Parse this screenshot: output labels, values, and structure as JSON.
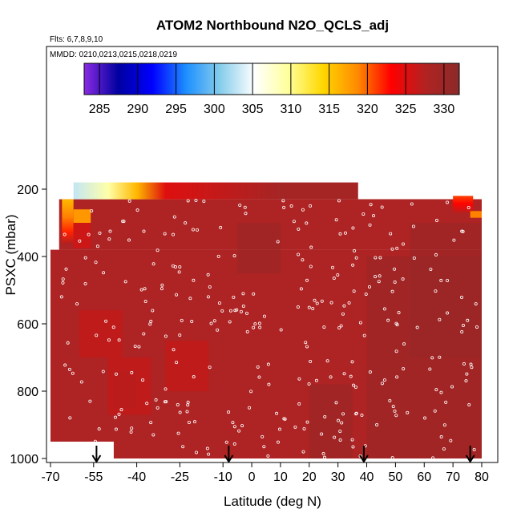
{
  "chart_data": {
    "type": "heatmap",
    "title": "ATOM2 Northbound N2O_QCLS_adj",
    "annotations": {
      "flights": "Flts: 6,7,8,9,10",
      "dates": "MMDD: 0210,0213,0215,0218,0219"
    },
    "xlabel": "Latitude (deg N)",
    "ylabel": "PSXC (mbar)",
    "x_ticks": [
      -70,
      -55,
      -40,
      -25,
      -10,
      0,
      10,
      20,
      30,
      40,
      50,
      60,
      70,
      80
    ],
    "x_tick_labels": [
      "-70",
      "-55",
      "-40",
      "-25",
      "-10",
      "0",
      "10",
      "20",
      "30",
      "40",
      "50",
      "60",
      "70",
      "80"
    ],
    "y_ticks": [
      200,
      400,
      600,
      800,
      1000
    ],
    "y_tick_labels": [
      "200",
      "400",
      "600",
      "800",
      "1000"
    ],
    "ylim": [
      1000,
      75
    ],
    "colorbar": {
      "ticks": [
        285,
        290,
        295,
        300,
        305,
        310,
        315,
        320,
        325,
        330
      ],
      "range": [
        283,
        332
      ],
      "colors": [
        "#8a2be2",
        "#0000a0",
        "#0000ff",
        "#1e90ff",
        "#87ceeb",
        "#ffffff",
        "#ffff99",
        "#ffd700",
        "#ff8c00",
        "#ff0000",
        "#b22222",
        "#8b2a2a"
      ]
    },
    "field_summary": {
      "lower_troposphere_value": 328,
      "upper_band_pressure": [
        180,
        230
      ],
      "upper_band_values": [
        {
          "lat": -62,
          "value": 303
        },
        {
          "lat": -50,
          "value": 309
        },
        {
          "lat": -40,
          "value": 316
        },
        {
          "lat": -30,
          "value": 325
        },
        {
          "lat": 10,
          "value": 329
        },
        {
          "lat": 37,
          "value": 329
        }
      ],
      "right_band_values": [
        {
          "lat": 50,
          "value": 326
        },
        {
          "lat": 65,
          "value": 323
        },
        {
          "lat": 72,
          "value": 318
        },
        {
          "lat": 77,
          "value": 322
        }
      ]
    },
    "descent_markers_lat": [
      -54,
      -8,
      39,
      76
    ],
    "legend": "none",
    "grid": false
  }
}
